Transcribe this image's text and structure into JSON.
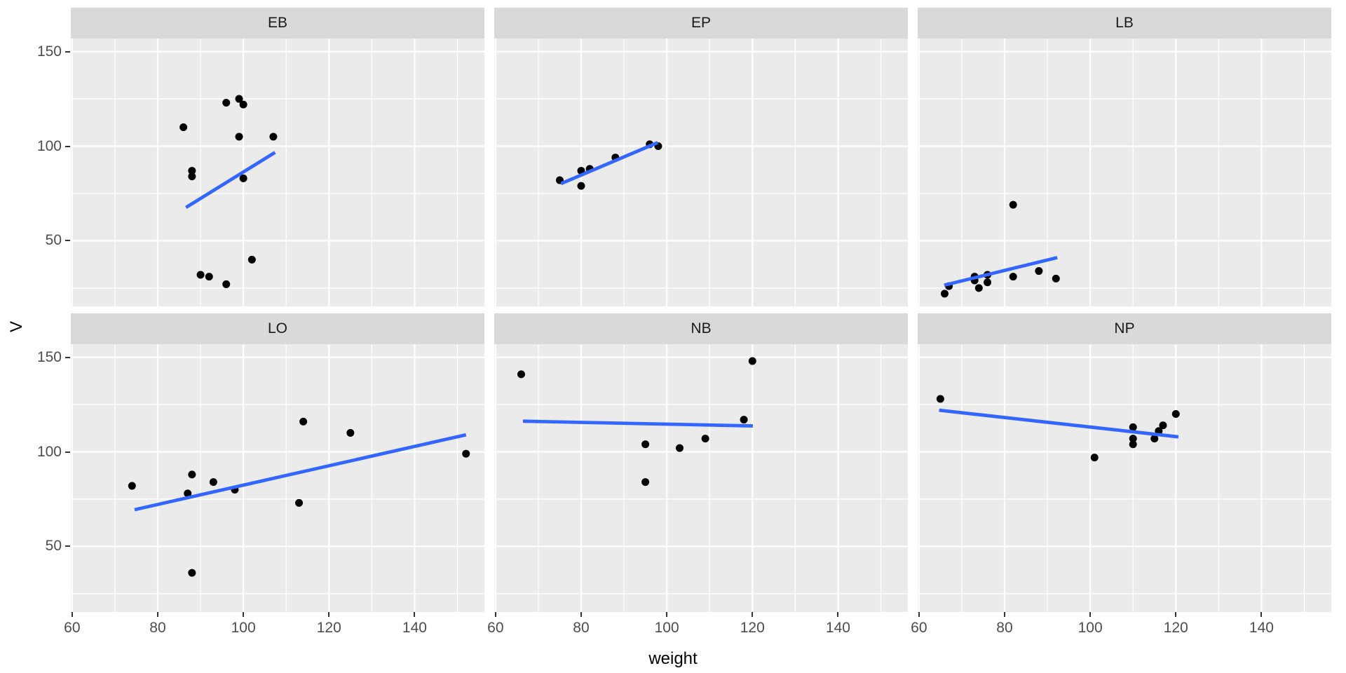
{
  "chart_data": {
    "type": "scatter",
    "title": "",
    "xlabel": "weight",
    "ylabel": "V",
    "grid": true,
    "legend": "none",
    "facet_labels": [
      "EB",
      "EP",
      "LB",
      "LO",
      "NB",
      "NP"
    ],
    "x_ticks": [
      60,
      80,
      100,
      120,
      140
    ],
    "x_minor_ticks": [
      70,
      90,
      110,
      130,
      150
    ],
    "y_ticks": [
      50,
      100,
      150
    ],
    "y_minor_ticks": [
      25,
      75,
      125
    ],
    "xlim": [
      59.7,
      156.3
    ],
    "ylim": [
      15.3,
      156.9
    ],
    "facets": [
      {
        "label": "EB",
        "points": [
          [
            96,
            123
          ],
          [
            99,
            125
          ],
          [
            100,
            122
          ],
          [
            86,
            110
          ],
          [
            99,
            105
          ],
          [
            107,
            105
          ],
          [
            88,
            87
          ],
          [
            88,
            84
          ],
          [
            100,
            83
          ],
          [
            102,
            40
          ],
          [
            90,
            32
          ],
          [
            92,
            31
          ],
          [
            96,
            27
          ]
        ],
        "trend": [
          [
            86.6,
            67.6
          ],
          [
            107.4,
            96.7
          ]
        ]
      },
      {
        "label": "EP",
        "points": [
          [
            75,
            82
          ],
          [
            80,
            87
          ],
          [
            82,
            88
          ],
          [
            80,
            79
          ],
          [
            88,
            94
          ],
          [
            96,
            101
          ],
          [
            98,
            100
          ]
        ],
        "trend": [
          [
            75.3,
            80.2
          ],
          [
            97.9,
            101.9
          ]
        ]
      },
      {
        "label": "LB",
        "points": [
          [
            66,
            22
          ],
          [
            67,
            26
          ],
          [
            73,
            31
          ],
          [
            73,
            29
          ],
          [
            74,
            25
          ],
          [
            76,
            32
          ],
          [
            76,
            28
          ],
          [
            82,
            31
          ],
          [
            88,
            34
          ],
          [
            92,
            30
          ],
          [
            82,
            69
          ]
        ],
        "trend": [
          [
            65.9,
            26.5
          ],
          [
            92.3,
            41.1
          ]
        ]
      },
      {
        "label": "LO",
        "points": [
          [
            74,
            82
          ],
          [
            88,
            88
          ],
          [
            87,
            78
          ],
          [
            93,
            84
          ],
          [
            98,
            80
          ],
          [
            114,
            116
          ],
          [
            113,
            73
          ],
          [
            125,
            110
          ],
          [
            152,
            99
          ],
          [
            88,
            36
          ]
        ],
        "trend": [
          [
            74.6,
            69.4
          ],
          [
            152,
            109
          ]
        ]
      },
      {
        "label": "NB",
        "points": [
          [
            66,
            141
          ],
          [
            120,
            148
          ],
          [
            118,
            117
          ],
          [
            109,
            107
          ],
          [
            95,
            104
          ],
          [
            103,
            102
          ],
          [
            95,
            84
          ]
        ],
        "trend": [
          [
            66.4,
            116.2
          ],
          [
            120.1,
            113.7
          ]
        ]
      },
      {
        "label": "NP",
        "points": [
          [
            65,
            128
          ],
          [
            101,
            97
          ],
          [
            110,
            104
          ],
          [
            110,
            107
          ],
          [
            110,
            113
          ],
          [
            115,
            107
          ],
          [
            116,
            111
          ],
          [
            117,
            114
          ],
          [
            120,
            120
          ]
        ],
        "trend": [
          [
            64.7,
            122.0
          ],
          [
            120.6,
            107.9
          ]
        ]
      }
    ]
  },
  "style": {
    "panel_bg": "#EBEBEB",
    "strip_bg": "#D9D9D9",
    "grid_color": "#FFFFFF",
    "point_color": "#000000",
    "trend_color": "#3366FF",
    "tick_text_color": "#4D4D4D",
    "tick_mark_color": "#333333",
    "strip_text_color": "#1A1A1A",
    "axis_title_color": "#000000"
  }
}
